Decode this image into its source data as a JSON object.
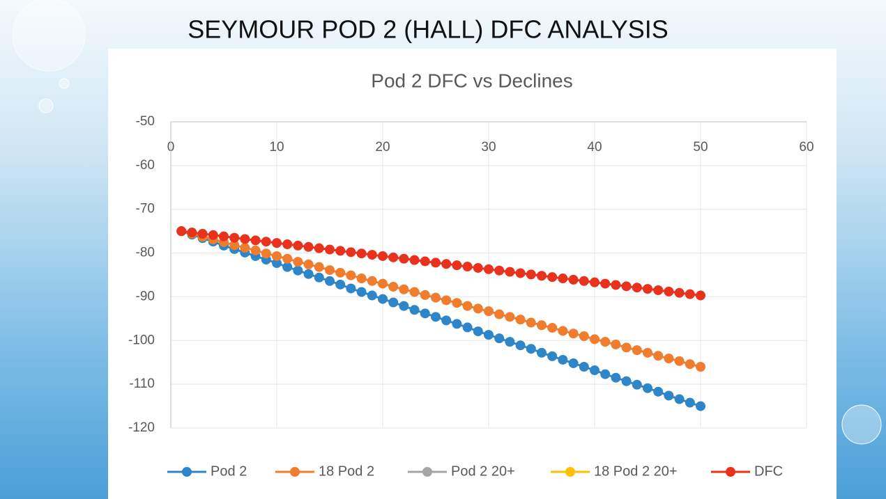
{
  "chart_data": {
    "type": "line",
    "slide_title": "SEYMOUR POD 2 (HALL) DFC ANALYSIS",
    "title": "Pod 2 DFC vs Declines",
    "x": [
      1,
      2,
      3,
      4,
      5,
      6,
      7,
      8,
      9,
      10,
      11,
      12,
      13,
      14,
      15,
      16,
      17,
      18,
      19,
      20,
      21,
      22,
      23,
      24,
      25,
      26,
      27,
      28,
      29,
      30,
      31,
      32,
      33,
      34,
      35,
      36,
      37,
      38,
      39,
      40,
      41,
      42,
      43,
      44,
      45,
      46,
      47,
      48,
      49,
      50
    ],
    "xlim": [
      0,
      60
    ],
    "xticks": [
      0,
      10,
      20,
      30,
      40,
      50,
      60
    ],
    "ylim": [
      -120,
      -50
    ],
    "yticks": [
      -50,
      -60,
      -70,
      -80,
      -90,
      -100,
      -110,
      -120
    ],
    "grid": true,
    "legend": "bottom",
    "series": [
      {
        "name": "Pod 2",
        "color": "#2e86c8",
        "values": [
          -75,
          -75.8,
          -76.6,
          -77.4,
          -78.3,
          -79.1,
          -79.9,
          -80.7,
          -81.5,
          -82.3,
          -83.2,
          -84.0,
          -84.8,
          -85.6,
          -86.4,
          -87.2,
          -88.1,
          -88.9,
          -89.7,
          -90.5,
          -91.3,
          -92.1,
          -93.0,
          -93.8,
          -94.6,
          -95.4,
          -96.2,
          -97.0,
          -97.9,
          -98.7,
          -99.5,
          -100.3,
          -101.1,
          -101.9,
          -102.8,
          -103.6,
          -104.4,
          -105.2,
          -106.0,
          -106.8,
          -107.7,
          -108.5,
          -109.3,
          -110.1,
          -110.9,
          -111.7,
          -112.6,
          -113.4,
          -114.2,
          -115.0
        ]
      },
      {
        "name": "18 Pod 2",
        "color": "#f07c2e",
        "values": [
          -75,
          -75.6,
          -76.3,
          -76.9,
          -77.5,
          -78.2,
          -78.8,
          -79.4,
          -80.1,
          -80.7,
          -81.3,
          -82.0,
          -82.6,
          -83.2,
          -83.9,
          -84.5,
          -85.1,
          -85.8,
          -86.4,
          -87.0,
          -87.7,
          -88.3,
          -88.9,
          -89.6,
          -90.2,
          -90.8,
          -91.4,
          -92.1,
          -92.7,
          -93.3,
          -94.0,
          -94.6,
          -95.2,
          -95.9,
          -96.5,
          -97.1,
          -97.8,
          -98.4,
          -99.0,
          -99.7,
          -100.3,
          -100.9,
          -101.6,
          -102.2,
          -102.8,
          -103.5,
          -104.1,
          -104.7,
          -105.4,
          -106.0
        ]
      },
      {
        "name": "Pod 2 20+",
        "color": "#a5a5a5",
        "values": [
          null,
          null,
          null,
          null,
          null,
          null,
          null,
          null,
          null,
          null,
          null,
          null,
          null,
          null,
          null,
          null,
          null,
          null,
          null,
          null,
          null,
          null,
          null,
          null,
          null,
          null,
          null,
          null,
          null,
          null,
          null,
          null,
          null,
          null,
          null,
          null,
          null,
          null,
          null,
          null,
          null,
          null,
          null,
          null,
          null,
          null,
          null,
          null,
          null,
          null
        ]
      },
      {
        "name": "18 Pod 2 20+",
        "color": "#ffc000",
        "values": [
          null,
          null,
          null,
          null,
          null,
          null,
          null,
          null,
          null,
          null,
          null,
          null,
          null,
          null,
          null,
          null,
          null,
          null,
          null,
          null,
          null,
          null,
          null,
          null,
          null,
          null,
          null,
          null,
          null,
          null,
          null,
          null,
          null,
          null,
          null,
          null,
          null,
          null,
          null,
          null,
          null,
          null,
          null,
          null,
          null,
          null,
          null,
          null,
          null,
          null
        ]
      },
      {
        "name": "DFC",
        "color": "#e8321e",
        "values": [
          -75,
          -75.3,
          -75.6,
          -75.9,
          -76.2,
          -76.5,
          -76.8,
          -77.1,
          -77.4,
          -77.7,
          -78.0,
          -78.3,
          -78.6,
          -78.9,
          -79.2,
          -79.5,
          -79.8,
          -80.1,
          -80.4,
          -80.7,
          -81.0,
          -81.3,
          -81.6,
          -81.9,
          -82.2,
          -82.5,
          -82.8,
          -83.1,
          -83.4,
          -83.7,
          -84.0,
          -84.3,
          -84.6,
          -84.9,
          -85.2,
          -85.5,
          -85.8,
          -86.1,
          -86.4,
          -86.7,
          -87.0,
          -87.3,
          -87.6,
          -87.9,
          -88.2,
          -88.5,
          -88.8,
          -89.1,
          -89.4,
          -89.7
        ]
      }
    ]
  }
}
